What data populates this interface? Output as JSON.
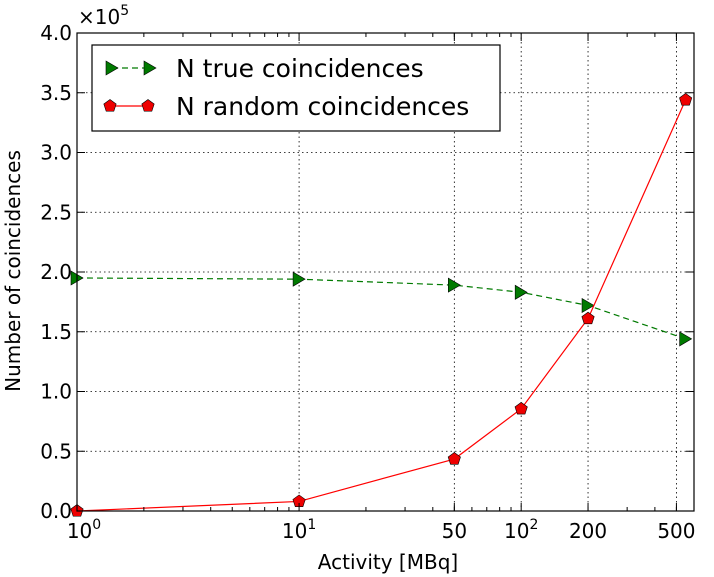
{
  "chart_data": {
    "type": "line",
    "xscale": "log",
    "xlim": [
      1,
      600
    ],
    "ylim": [
      0,
      400000
    ],
    "xlabel": "Activity [MBq]",
    "ylabel": "Number of coincidences",
    "y_multiplier_label": "×10",
    "y_multiplier_exponent": "5",
    "grid": true,
    "legend_position": "top-left",
    "x_ticks": [
      {
        "value": 1,
        "base": "10",
        "exp": "0"
      },
      {
        "value": 10,
        "base": "10",
        "exp": "1"
      },
      {
        "value": 50,
        "base": "50",
        "exp": ""
      },
      {
        "value": 100,
        "base": "10",
        "exp": "2"
      },
      {
        "value": 200,
        "base": "200",
        "exp": ""
      },
      {
        "value": 500,
        "base": "500",
        "exp": ""
      }
    ],
    "y_ticks": [
      {
        "value": 0,
        "label": "0.0"
      },
      {
        "value": 50000,
        "label": "0.5"
      },
      {
        "value": 100000,
        "label": "1.0"
      },
      {
        "value": 150000,
        "label": "1.5"
      },
      {
        "value": 200000,
        "label": "2.0"
      },
      {
        "value": 250000,
        "label": "2.5"
      },
      {
        "value": 300000,
        "label": "3.0"
      },
      {
        "value": 350000,
        "label": "3.5"
      },
      {
        "value": 400000,
        "label": "4.0"
      }
    ],
    "series": [
      {
        "name": "N true coincidences",
        "color": "#007a00",
        "marker": "triangle-right",
        "linestyle": "dashed",
        "x": [
          1,
          10,
          50,
          100,
          200,
          550
        ],
        "y": [
          195000,
          194000,
          189000,
          183000,
          172000,
          144000
        ]
      },
      {
        "name": "N random coincidences",
        "color": "#ff0000",
        "marker": "pentagon",
        "linestyle": "solid",
        "x": [
          1,
          10,
          50,
          100,
          200,
          550
        ],
        "y": [
          0,
          8000,
          43500,
          85500,
          161000,
          344000
        ]
      }
    ]
  }
}
